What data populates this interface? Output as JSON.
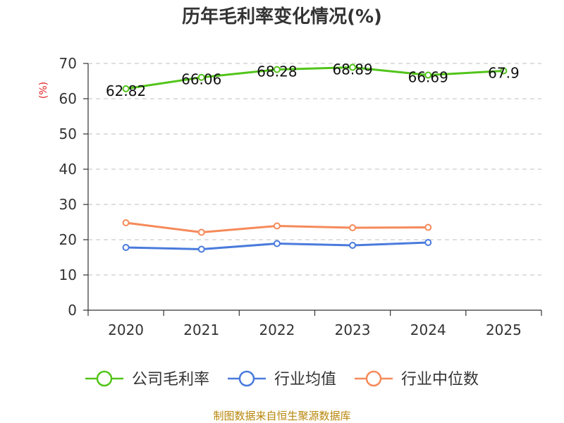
{
  "chart_data": {
    "type": "line",
    "title": "历年毛利率变化情况(%)",
    "ylabel": "(%)",
    "categories": [
      "2020",
      "2021",
      "2022",
      "2023",
      "2024",
      "2025"
    ],
    "ylim": [
      0,
      70
    ],
    "yticks": [
      0,
      10,
      20,
      30,
      40,
      50,
      60,
      70
    ],
    "grid": true,
    "legend_position": "bottom",
    "series": [
      {
        "name": "公司毛利率",
        "color": "#52c41a",
        "values": [
          62.82,
          66.06,
          68.28,
          68.89,
          66.69,
          67.9
        ],
        "labels": [
          "62.82",
          "66.06",
          "68.28",
          "68.89",
          "66.69",
          "67.9"
        ]
      },
      {
        "name": "行业均值",
        "color": "#4a7bdc",
        "values": [
          17.8,
          17.3,
          18.9,
          18.4,
          19.2,
          null
        ]
      },
      {
        "name": "行业中位数",
        "color": "#f58a5a",
        "values": [
          24.8,
          22.1,
          23.9,
          23.4,
          23.5,
          null
        ]
      }
    ]
  },
  "source": "制图数据来自恒生聚源数据库"
}
